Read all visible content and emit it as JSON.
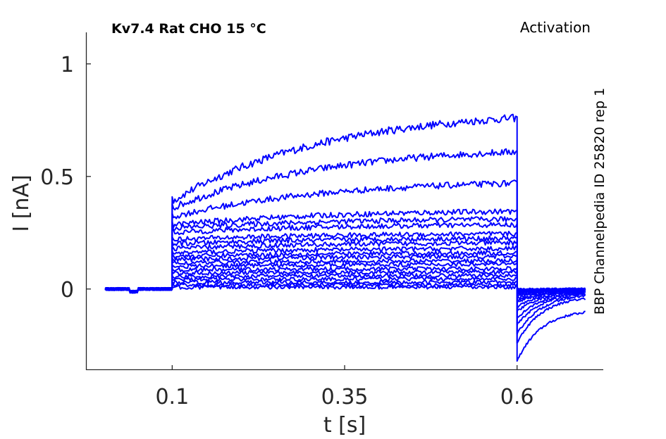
{
  "chart_data": {
    "type": "line",
    "title": "Kv7.4  Rat  CHO  15 °C",
    "title_right": "Activation",
    "side_label": "BBP Channelpedia ID 25820 rep 1",
    "xlabel": "t [s]",
    "ylabel": "I [nA]",
    "xlim": [
      -0.025,
      0.725
    ],
    "ylim": [
      -0.36,
      1.14
    ],
    "xticks": [
      0.1,
      0.35,
      0.6
    ],
    "xtick_labels": [
      "0.1",
      "0.35",
      "0.6"
    ],
    "yticks": [
      0,
      0.5,
      1
    ],
    "ytick_labels": [
      "0",
      "0.5",
      "1"
    ],
    "grid": false,
    "series_color": "#0000ff",
    "stimulus": {
      "t_start": 0.003,
      "step_on": 0.1,
      "step_off": 0.6,
      "t_end": 0.7
    },
    "steady_state": [
      0.76,
      0.61,
      0.47,
      0.345,
      0.31,
      0.285,
      0.245,
      0.225,
      0.205,
      0.18,
      0.16,
      0.145,
      0.125,
      0.11,
      0.09,
      0.075,
      0.06,
      0.045,
      0.03,
      0.018,
      0.008
    ],
    "onset": [
      0.39,
      0.36,
      0.32,
      0.285,
      0.27,
      0.25,
      0.22,
      0.2,
      0.18,
      0.16,
      0.145,
      0.13,
      0.115,
      0.1,
      0.085,
      0.07,
      0.055,
      0.042,
      0.03,
      0.018,
      0.008
    ],
    "tail_peak": [
      -0.32,
      -0.24,
      -0.2,
      -0.16,
      -0.13,
      -0.1,
      -0.08,
      -0.06,
      -0.05,
      -0.04,
      -0.03,
      -0.025,
      -0.02,
      -0.016,
      -0.012,
      -0.01,
      -0.008,
      -0.006,
      -0.004,
      -0.003,
      -0.002
    ],
    "tail_end": [
      -0.09,
      -0.03,
      -0.02,
      -0.015,
      -0.012,
      -0.01,
      -0.008,
      -0.007,
      -0.006,
      -0.005,
      -0.004,
      -0.003,
      -0.003,
      -0.002,
      -0.002,
      -0.001,
      -0.001,
      -0.001,
      0,
      0,
      0
    ]
  }
}
